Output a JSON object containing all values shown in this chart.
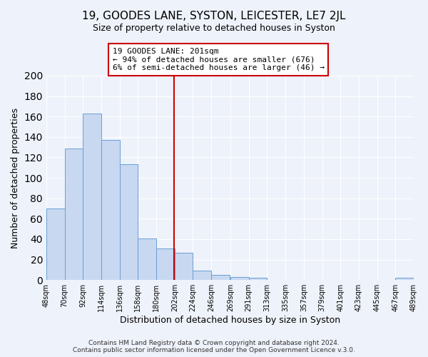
{
  "title": "19, GOODES LANE, SYSTON, LEICESTER, LE7 2JL",
  "subtitle": "Size of property relative to detached houses in Syston",
  "xlabel": "Distribution of detached houses by size in Syston",
  "ylabel": "Number of detached properties",
  "footer_lines": [
    "Contains HM Land Registry data © Crown copyright and database right 2024.",
    "Contains public sector information licensed under the Open Government Licence v.3.0."
  ],
  "bar_edges": [
    48,
    70,
    92,
    114,
    136,
    158,
    180,
    202,
    224,
    246,
    269,
    291,
    313,
    335,
    357,
    379,
    401,
    423,
    445,
    467,
    489
  ],
  "bar_heights": [
    70,
    129,
    163,
    137,
    113,
    41,
    31,
    27,
    9,
    5,
    3,
    2,
    0,
    0,
    0,
    0,
    0,
    0,
    0,
    2
  ],
  "bar_color": "#c8d8f0",
  "bar_edgecolor": "#6a9fd8",
  "property_value": 201,
  "vline_color": "#cc0000",
  "annotation_line1": "19 GOODES LANE: 201sqm",
  "annotation_line2": "← 94% of detached houses are smaller (676)",
  "annotation_line3": "6% of semi-detached houses are larger (46) →",
  "annotation_boxcolor": "white",
  "annotation_boxedge": "#cc0000",
  "ylim": [
    0,
    200
  ],
  "yticks": [
    0,
    20,
    40,
    60,
    80,
    100,
    120,
    140,
    160,
    180,
    200
  ],
  "tick_labels": [
    "48sqm",
    "70sqm",
    "92sqm",
    "114sqm",
    "136sqm",
    "158sqm",
    "180sqm",
    "202sqm",
    "224sqm",
    "246sqm",
    "269sqm",
    "291sqm",
    "313sqm",
    "335sqm",
    "357sqm",
    "379sqm",
    "401sqm",
    "423sqm",
    "445sqm",
    "467sqm",
    "489sqm"
  ],
  "bg_color": "#eef2fa",
  "grid_color": "white",
  "title_fontsize": 11,
  "subtitle_fontsize": 9,
  "axis_label_fontsize": 9,
  "tick_fontsize": 7,
  "annotation_fontsize": 8,
  "footer_fontsize": 6.5
}
